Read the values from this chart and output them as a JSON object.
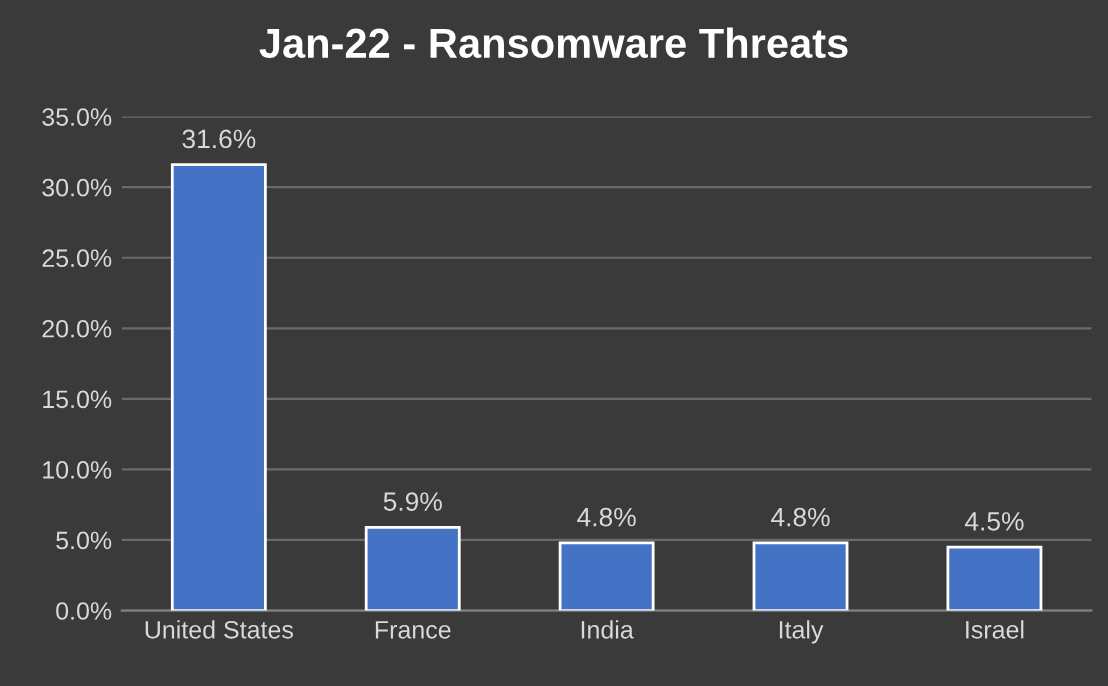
{
  "chart_data": {
    "type": "bar",
    "title": "Jan-22 - Ransomware Threats",
    "categories": [
      "United States",
      "France",
      "India",
      "Italy",
      "Israel"
    ],
    "values": [
      31.6,
      5.9,
      4.8,
      4.8,
      4.5
    ],
    "value_labels": [
      "31.6%",
      "5.9%",
      "4.8%",
      "4.8%",
      "4.5%"
    ],
    "color": "#4472c4",
    "ylim": [
      0,
      35
    ],
    "yticks": [
      {
        "value": 0,
        "label": "0.0%"
      },
      {
        "value": 5,
        "label": "5.0%"
      },
      {
        "value": 10,
        "label": "10.0%"
      },
      {
        "value": 15,
        "label": "15.0%"
      },
      {
        "value": 20,
        "label": "20.0%"
      },
      {
        "value": 25,
        "label": "25.0%"
      },
      {
        "value": 30,
        "label": "30.0%"
      },
      {
        "value": 35,
        "label": "35.0%"
      }
    ],
    "grid": "y"
  }
}
